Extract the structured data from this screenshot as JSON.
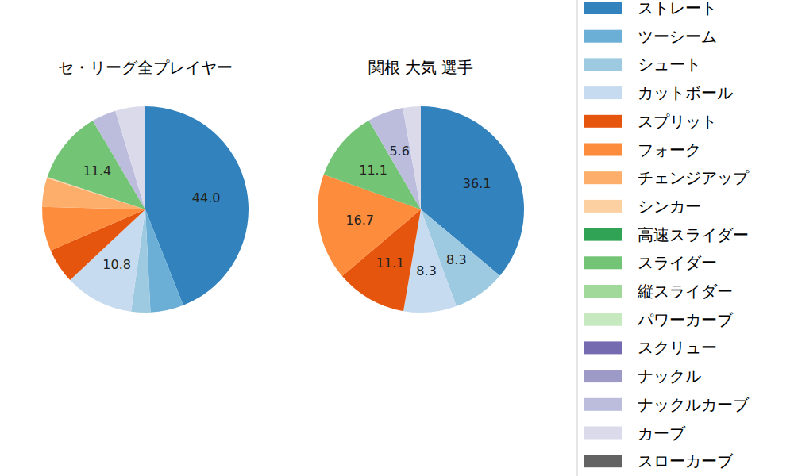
{
  "chart_data": [
    {
      "type": "pie",
      "title": "セ・リーグ全プレイヤー",
      "categories": [
        "ストレート",
        "ツーシーム",
        "シュート",
        "カットボール",
        "スプリット",
        "フォーク",
        "チェンジアップ",
        "シンカー",
        "高速スライダー",
        "スライダー",
        "縦スライダー",
        "パワーカーブ",
        "スクリュー",
        "ナックル",
        "ナックルカーブ",
        "カーブ",
        "スローカーブ"
      ],
      "values": [
        44.0,
        5.2,
        3.0,
        10.8,
        5.5,
        6.9,
        4.5,
        0.2,
        0,
        11.4,
        0,
        0,
        0,
        0,
        3.8,
        4.7,
        0
      ],
      "value_labels": [
        "44.0",
        null,
        null,
        "10.8",
        null,
        null,
        null,
        null,
        null,
        "11.4",
        null,
        null,
        null,
        null,
        null,
        null,
        null
      ],
      "colors": [
        "#3182bd",
        "#6baed6",
        "#9ecae1",
        "#c6dbef",
        "#e6550d",
        "#fd8d3c",
        "#fdae6b",
        "#fdd0a2",
        "#31a354",
        "#74c476",
        "#a1d99b",
        "#c7e9c0",
        "#756bb1",
        "#9e9ac8",
        "#bcbddc",
        "#dadaeb",
        "#636363"
      ],
      "data_labels": true,
      "legend": "right"
    },
    {
      "type": "pie",
      "title": "関根 大気  選手",
      "categories": [
        "ストレート",
        "ツーシーム",
        "シュート",
        "カットボール",
        "スプリット",
        "フォーク",
        "チェンジアップ",
        "シンカー",
        "高速スライダー",
        "スライダー",
        "縦スライダー",
        "パワーカーブ",
        "スクリュー",
        "ナックル",
        "ナックルカーブ",
        "カーブ",
        "スローカーブ"
      ],
      "values": [
        36.1,
        0,
        8.3,
        8.3,
        11.1,
        16.7,
        0,
        0,
        0,
        11.1,
        0,
        0,
        0,
        0,
        5.6,
        2.8,
        0
      ],
      "value_labels": [
        "36.1",
        null,
        "8.3",
        "8.3",
        "11.1",
        "16.7",
        null,
        null,
        null,
        "11.1",
        null,
        null,
        null,
        null,
        "5.6",
        null,
        null
      ],
      "colors": [
        "#3182bd",
        "#6baed6",
        "#9ecae1",
        "#c6dbef",
        "#e6550d",
        "#fd8d3c",
        "#fdae6b",
        "#fdd0a2",
        "#31a354",
        "#74c476",
        "#a1d99b",
        "#c7e9c0",
        "#756bb1",
        "#9e9ac8",
        "#bcbddc",
        "#dadaeb",
        "#636363"
      ],
      "data_labels": true
    }
  ]
}
